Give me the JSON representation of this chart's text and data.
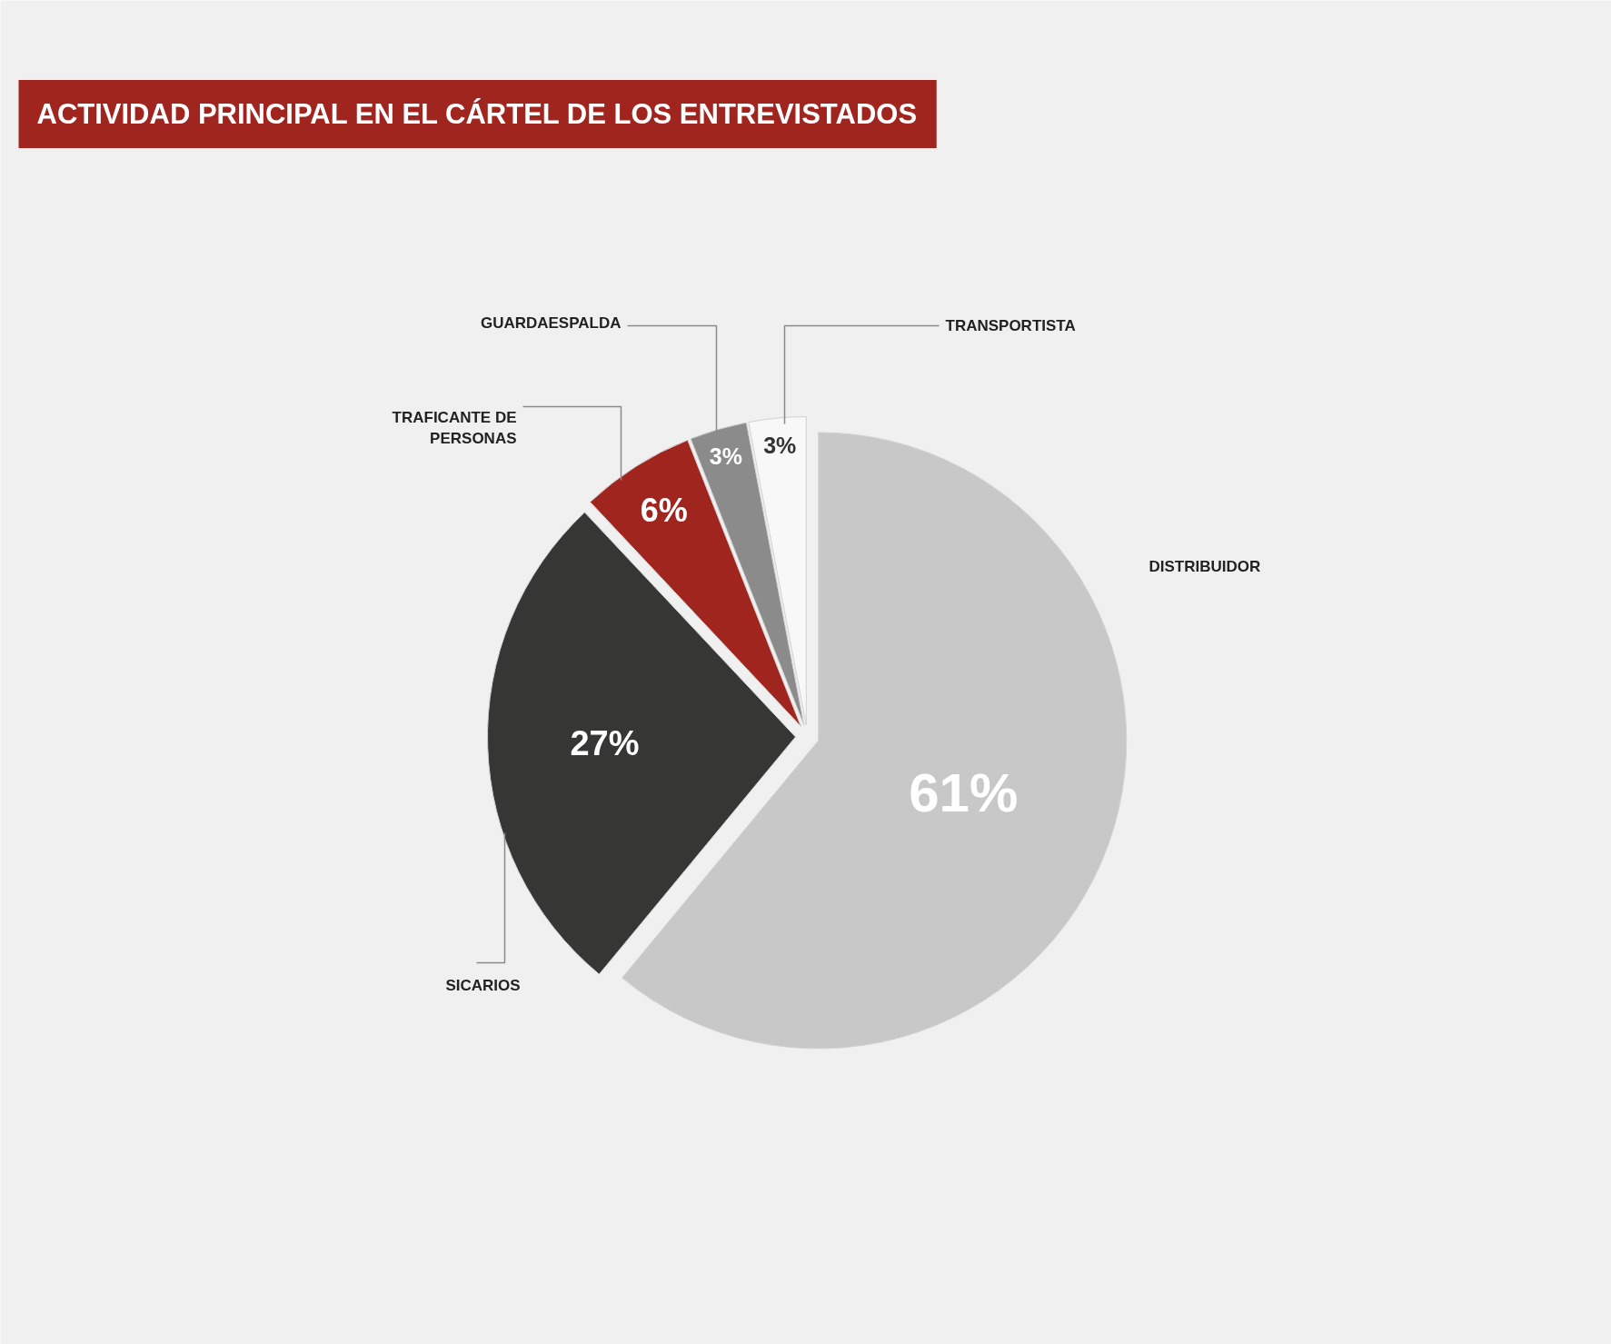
{
  "chart_data": {
    "type": "pie",
    "title": "ACTIVIDAD PRINCIPAL EN EL CÁRTEL DE LOS ENTREVISTADOS",
    "categories": [
      "DISTRIBUIDOR",
      "SICARIOS",
      "TRAFICANTE DE PERSONAS",
      "GUARDAESPALDA",
      "TRANSPORTISTA"
    ],
    "values": [
      61,
      27,
      6,
      3,
      3
    ],
    "colors": [
      "#c9c8c8",
      "#363634",
      "#a1251f",
      "#8b8b8b",
      "#f8f8f8"
    ],
    "value_labels": [
      "61%",
      "27%",
      "6%",
      "3%",
      "3%"
    ]
  }
}
